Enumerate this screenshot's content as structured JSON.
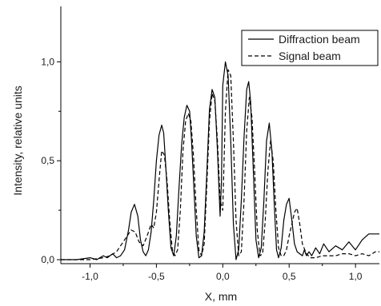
{
  "chart_data": {
    "type": "line",
    "title": "",
    "xlabel": "X, mm",
    "ylabel": "Intensity, relative units",
    "xlim": [
      -1.22,
      1.18
    ],
    "ylim": [
      -0.02,
      1.28
    ],
    "x_ticks": [
      {
        "value": -1.0,
        "label": "-1,0"
      },
      {
        "value": -0.5,
        "label": "-0,5"
      },
      {
        "value": 0.0,
        "label": "0,0"
      },
      {
        "value": 0.5,
        "label": "0,5"
      },
      {
        "value": 1.0,
        "label": "1,0"
      }
    ],
    "y_ticks": [
      {
        "value": 0.0,
        "label": "0,0"
      },
      {
        "value": 0.5,
        "label": "0,5"
      },
      {
        "value": 1.0,
        "label": "1,0"
      }
    ],
    "grid": false,
    "legend_position": "top-right",
    "series": [
      {
        "name": "Diffraction beam",
        "style": "solid",
        "color": "#000000",
        "x": [
          -1.22,
          -1.1,
          -1.0,
          -0.95,
          -0.9,
          -0.87,
          -0.83,
          -0.8,
          -0.77,
          -0.74,
          -0.71,
          -0.69,
          -0.665,
          -0.64,
          -0.62,
          -0.6,
          -0.58,
          -0.56,
          -0.54,
          -0.52,
          -0.5,
          -0.48,
          -0.46,
          -0.445,
          -0.43,
          -0.41,
          -0.39,
          -0.37,
          -0.35,
          -0.33,
          -0.31,
          -0.29,
          -0.27,
          -0.25,
          -0.235,
          -0.22,
          -0.2,
          -0.18,
          -0.16,
          -0.14,
          -0.12,
          -0.1,
          -0.08,
          -0.06,
          -0.04,
          -0.02,
          -0.01,
          0.0,
          0.02,
          0.04,
          0.06,
          0.08,
          0.1,
          0.12,
          0.14,
          0.16,
          0.18,
          0.195,
          0.21,
          0.23,
          0.25,
          0.27,
          0.29,
          0.31,
          0.33,
          0.35,
          0.37,
          0.39,
          0.405,
          0.42,
          0.44,
          0.46,
          0.48,
          0.5,
          0.52,
          0.54,
          0.56,
          0.58,
          0.6,
          0.615,
          0.63,
          0.65,
          0.67,
          0.7,
          0.73,
          0.76,
          0.8,
          0.85,
          0.9,
          0.95,
          1.0,
          1.05,
          1.1,
          1.15,
          1.18
        ],
        "y": [
          0.0,
          0.0,
          0.01,
          0.0,
          0.02,
          0.01,
          0.03,
          0.01,
          0.02,
          0.05,
          0.15,
          0.24,
          0.28,
          0.22,
          0.1,
          0.04,
          0.02,
          0.05,
          0.14,
          0.3,
          0.5,
          0.63,
          0.68,
          0.64,
          0.48,
          0.25,
          0.06,
          0.02,
          0.12,
          0.36,
          0.58,
          0.72,
          0.78,
          0.75,
          0.6,
          0.4,
          0.12,
          0.01,
          0.02,
          0.14,
          0.44,
          0.76,
          0.86,
          0.82,
          0.55,
          0.22,
          0.4,
          0.88,
          1.0,
          0.93,
          0.6,
          0.18,
          0.0,
          0.05,
          0.3,
          0.62,
          0.86,
          0.9,
          0.8,
          0.45,
          0.1,
          0.01,
          0.06,
          0.3,
          0.6,
          0.69,
          0.55,
          0.25,
          0.05,
          0.01,
          0.06,
          0.2,
          0.28,
          0.31,
          0.2,
          0.08,
          0.04,
          0.03,
          0.02,
          0.05,
          0.02,
          0.04,
          0.02,
          0.06,
          0.03,
          0.08,
          0.04,
          0.07,
          0.05,
          0.09,
          0.05,
          0.1,
          0.13,
          0.13,
          0.13
        ]
      },
      {
        "name": "Signal beam",
        "style": "dashed",
        "color": "#000000",
        "x": [
          -1.22,
          -1.1,
          -1.0,
          -0.9,
          -0.85,
          -0.8,
          -0.76,
          -0.72,
          -0.69,
          -0.66,
          -0.63,
          -0.6,
          -0.57,
          -0.54,
          -0.52,
          -0.5,
          -0.48,
          -0.46,
          -0.44,
          -0.42,
          -0.4,
          -0.38,
          -0.36,
          -0.34,
          -0.32,
          -0.3,
          -0.28,
          -0.26,
          -0.24,
          -0.22,
          -0.2,
          -0.18,
          -0.16,
          -0.14,
          -0.12,
          -0.1,
          -0.08,
          -0.06,
          -0.04,
          -0.02,
          0.0,
          0.02,
          0.04,
          0.06,
          0.08,
          0.1,
          0.12,
          0.14,
          0.16,
          0.18,
          0.2,
          0.22,
          0.24,
          0.26,
          0.28,
          0.3,
          0.32,
          0.34,
          0.36,
          0.38,
          0.4,
          0.42,
          0.44,
          0.46,
          0.48,
          0.5,
          0.52,
          0.54,
          0.56,
          0.58,
          0.6,
          0.63,
          0.66,
          0.7,
          0.75,
          0.8,
          0.85,
          0.9,
          0.95,
          1.0,
          1.05,
          1.1,
          1.15,
          1.18
        ],
        "y": [
          0.0,
          0.0,
          0.0,
          0.01,
          0.02,
          0.04,
          0.08,
          0.12,
          0.15,
          0.14,
          0.09,
          0.07,
          0.12,
          0.18,
          0.16,
          0.24,
          0.4,
          0.55,
          0.53,
          0.4,
          0.2,
          0.05,
          0.02,
          0.05,
          0.25,
          0.55,
          0.7,
          0.74,
          0.7,
          0.52,
          0.25,
          0.05,
          0.02,
          0.08,
          0.38,
          0.7,
          0.84,
          0.8,
          0.6,
          0.3,
          0.25,
          0.75,
          0.96,
          0.93,
          0.6,
          0.2,
          0.02,
          0.04,
          0.3,
          0.65,
          0.82,
          0.72,
          0.45,
          0.15,
          0.02,
          0.03,
          0.2,
          0.45,
          0.6,
          0.5,
          0.25,
          0.06,
          0.02,
          0.02,
          0.05,
          0.12,
          0.18,
          0.24,
          0.26,
          0.18,
          0.08,
          0.03,
          0.01,
          0.01,
          0.02,
          0.02,
          0.02,
          0.03,
          0.03,
          0.02,
          0.03,
          0.02,
          0.04,
          0.04
        ]
      }
    ]
  }
}
